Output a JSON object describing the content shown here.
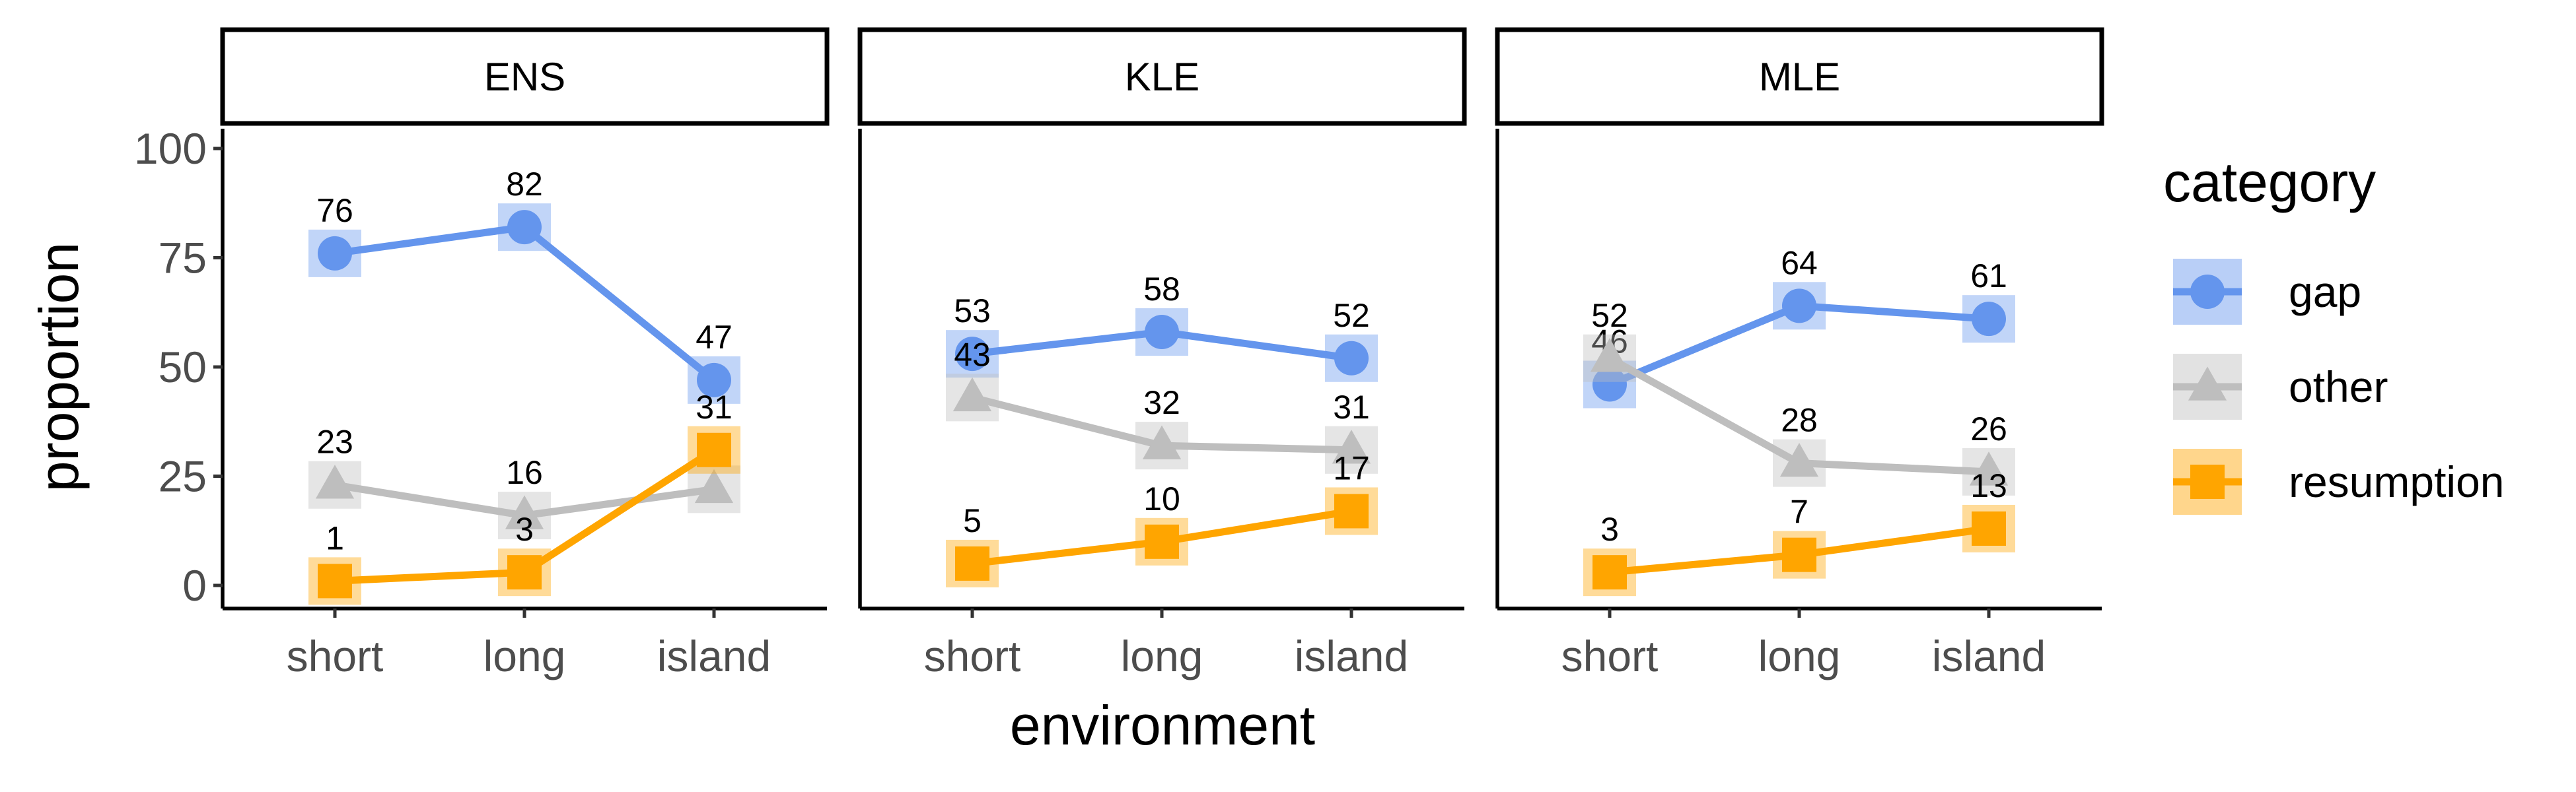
{
  "chart_data": {
    "type": "line",
    "facet_by": "panel",
    "panels": [
      "ENS",
      "KLE",
      "MLE"
    ],
    "categories": [
      "short",
      "long",
      "island"
    ],
    "xlabel": "environment",
    "ylabel": "proportion",
    "ylim": [
      0,
      100
    ],
    "yticks": [
      0,
      25,
      50,
      75,
      100
    ],
    "legend": {
      "title": "category",
      "position": "right",
      "entries": [
        "gap",
        "other",
        "resumption"
      ]
    },
    "grid": false,
    "series": [
      {
        "name": "gap",
        "color": "#6495ED",
        "marker": "circle",
        "values": {
          "ENS": [
            76,
            82,
            47
          ],
          "KLE": [
            53,
            58,
            52
          ],
          "MLE": [
            46,
            64,
            61
          ]
        }
      },
      {
        "name": "other",
        "color": "#BEBEBE",
        "marker": "triangle",
        "values": {
          "ENS": [
            23,
            16,
            22
          ],
          "KLE": [
            43,
            32,
            31
          ],
          "MLE": [
            52,
            28,
            26
          ]
        }
      },
      {
        "name": "resumption",
        "color": "#FFA500",
        "marker": "square",
        "values": {
          "ENS": [
            1,
            3,
            31
          ],
          "KLE": [
            5,
            10,
            17
          ],
          "MLE": [
            3,
            7,
            13
          ]
        }
      }
    ]
  }
}
